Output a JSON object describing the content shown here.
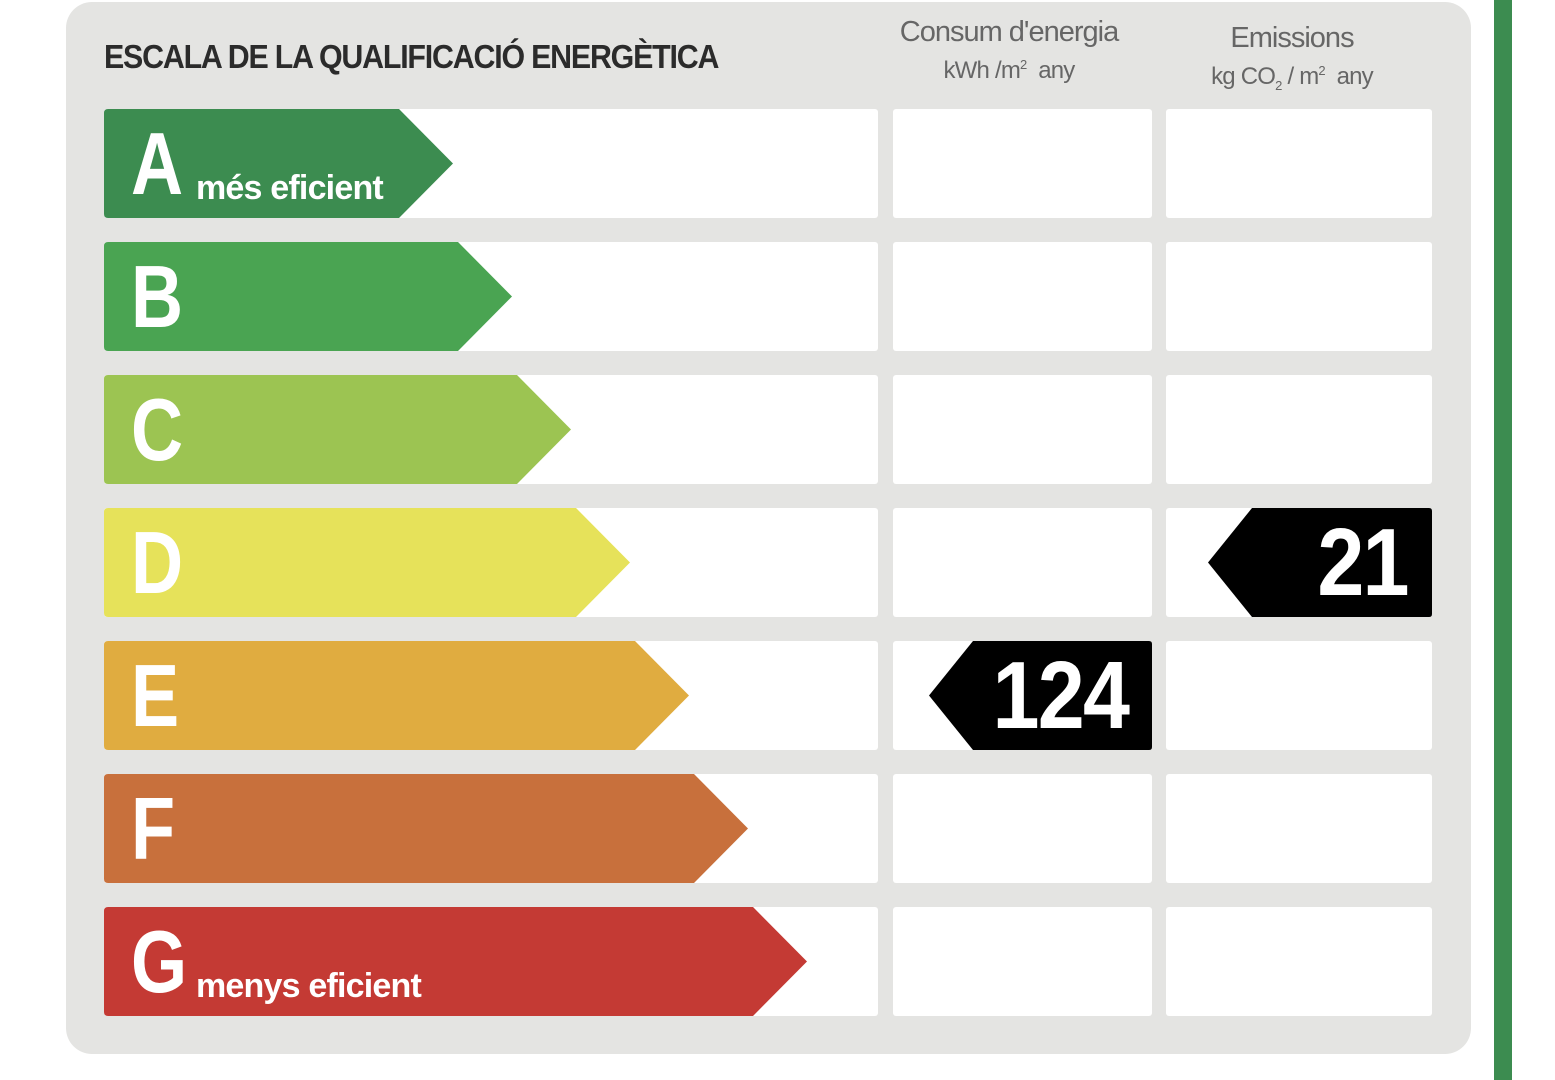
{
  "title": "ESCALA DE LA QUALIFICACIÓ ENERGÈTICA",
  "columns": {
    "energy": {
      "title": "Consum d'energia",
      "unit_pre": "kWh /m",
      "unit_sup": "2",
      "unit_post": "any"
    },
    "emissions": {
      "title": "Emissions",
      "unit_pre": "kg CO",
      "unit_sub": "2",
      "unit_mid": "/ m",
      "unit_sup": "2",
      "unit_post": "any"
    }
  },
  "ratings": [
    {
      "letter": "A",
      "sublabel": "més eficient",
      "color": "#3c8c50"
    },
    {
      "letter": "B",
      "sublabel": "",
      "color": "#4aa452"
    },
    {
      "letter": "C",
      "sublabel": "",
      "color": "#9cc452"
    },
    {
      "letter": "D",
      "sublabel": "",
      "color": "#e6e25a"
    },
    {
      "letter": "E",
      "sublabel": "",
      "color": "#e0ac40"
    },
    {
      "letter": "F",
      "sublabel": "",
      "color": "#c8703c"
    },
    {
      "letter": "G",
      "sublabel": "menys eficient",
      "color": "#c43a34"
    }
  ],
  "energy_value": {
    "value": "124",
    "rating": "E"
  },
  "emissions_value": {
    "value": "21",
    "rating": "D"
  },
  "colors": {
    "tag_background": "#000000",
    "card_background": "#e4e4e2",
    "side_stripe": "#3c8c50"
  }
}
